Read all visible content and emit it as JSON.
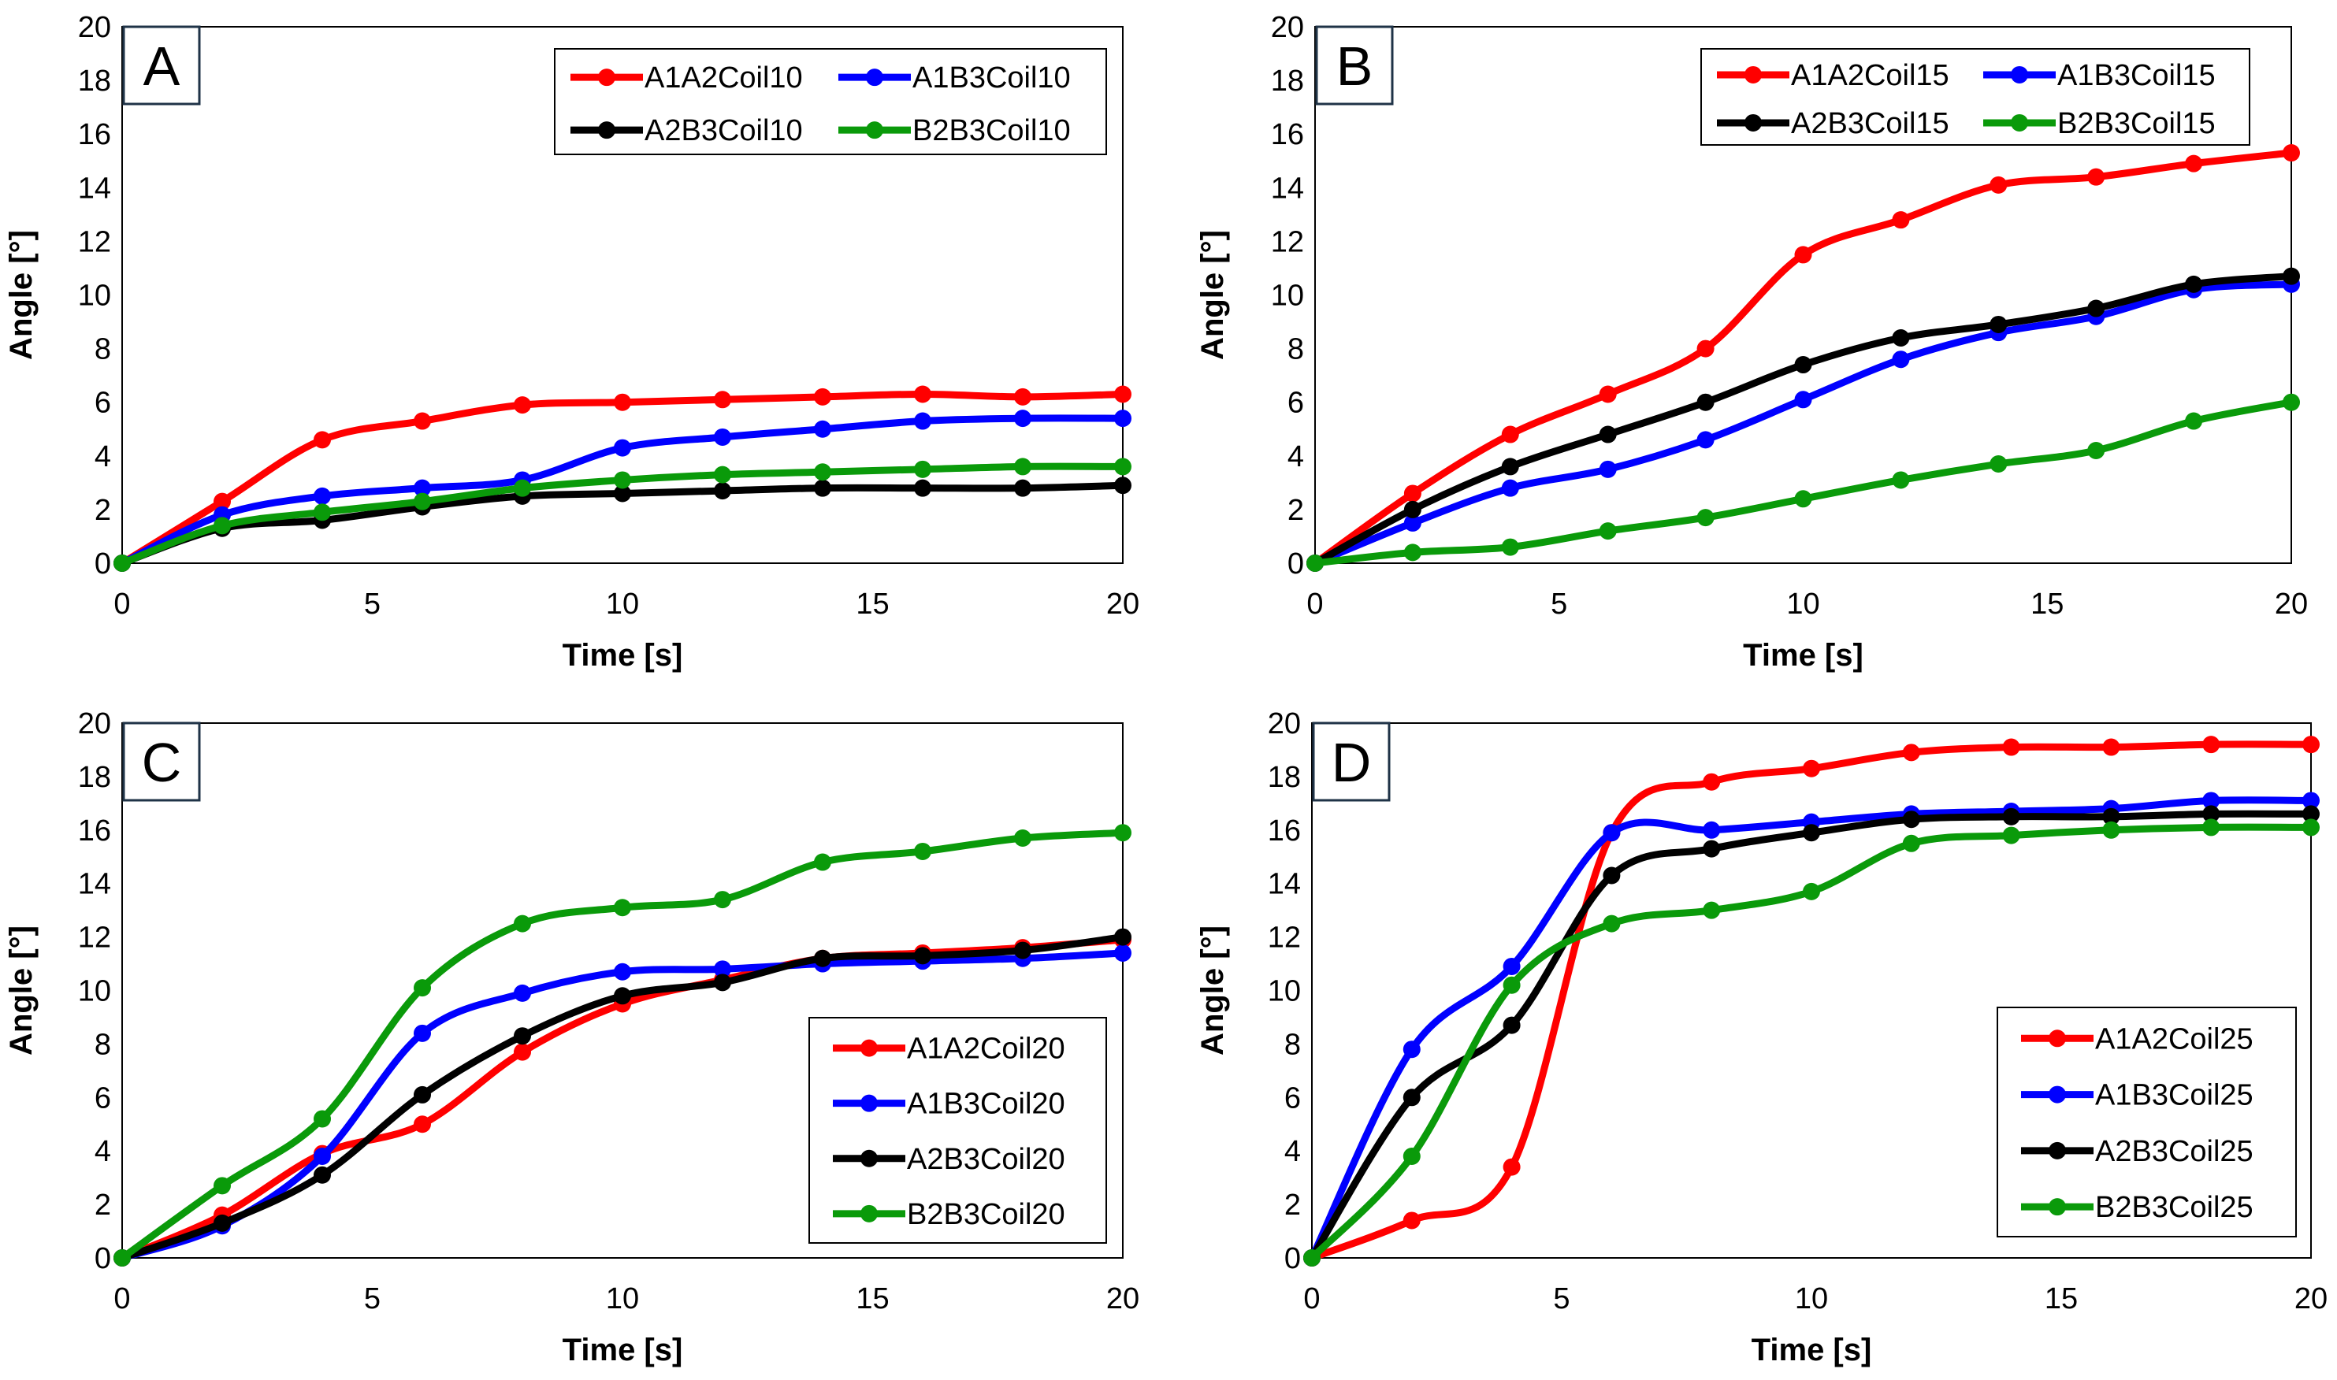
{
  "chart_data": [
    {
      "type": "line",
      "panel_label": "A",
      "xlabel": "Time [s]",
      "ylabel": "Angle [°]",
      "xlim": [
        0,
        20
      ],
      "ylim": [
        0,
        20
      ],
      "xticks": [
        "0",
        "5",
        "10",
        "15",
        "20"
      ],
      "yticks": [
        "0",
        "2",
        "4",
        "6",
        "8",
        "10",
        "12",
        "14",
        "16",
        "18",
        "20"
      ],
      "legend_placement": "top-right",
      "legend_columns": 2,
      "x": [
        0,
        2,
        4,
        6,
        8,
        10,
        12,
        14,
        16,
        18,
        20
      ],
      "series": [
        {
          "name": "A1A2Coil10",
          "color": "#ff0000",
          "values": [
            0,
            2.3,
            4.6,
            5.3,
            5.9,
            6.0,
            6.1,
            6.2,
            6.3,
            6.2,
            6.3
          ]
        },
        {
          "name": "A1B3Coil10",
          "color": "#0000ff",
          "values": [
            0,
            1.8,
            2.5,
            2.8,
            3.1,
            4.3,
            4.7,
            5.0,
            5.3,
            5.4,
            5.4
          ]
        },
        {
          "name": "A2B3Coil10",
          "color": "#000000",
          "values": [
            0,
            1.3,
            1.6,
            2.1,
            2.5,
            2.6,
            2.7,
            2.8,
            2.8,
            2.8,
            2.9
          ]
        },
        {
          "name": "B2B3Coil10",
          "color": "#0a9a0a",
          "values": [
            0,
            1.4,
            1.9,
            2.3,
            2.8,
            3.1,
            3.3,
            3.4,
            3.5,
            3.6,
            3.6
          ]
        }
      ]
    },
    {
      "type": "line",
      "panel_label": "B",
      "xlabel": "Time [s]",
      "ylabel": "Angle [°]",
      "xlim": [
        0,
        20
      ],
      "ylim": [
        0,
        20
      ],
      "xticks": [
        "0",
        "5",
        "10",
        "15",
        "20"
      ],
      "yticks": [
        "0",
        "2",
        "4",
        "6",
        "8",
        "10",
        "12",
        "14",
        "16",
        "18",
        "20"
      ],
      "legend_placement": "top-right",
      "legend_columns": 2,
      "x": [
        0,
        2,
        4,
        6,
        8,
        10,
        12,
        14,
        16,
        18,
        20
      ],
      "series": [
        {
          "name": "A1A2Coil15",
          "color": "#ff0000",
          "values": [
            0,
            2.6,
            4.8,
            6.3,
            8.0,
            11.5,
            12.8,
            14.1,
            14.4,
            14.9,
            15.3
          ]
        },
        {
          "name": "A1B3Coil15",
          "color": "#0000ff",
          "values": [
            0,
            1.5,
            2.8,
            3.5,
            4.6,
            6.1,
            7.6,
            8.6,
            9.2,
            10.2,
            10.4
          ]
        },
        {
          "name": "A2B3Coil15",
          "color": "#000000",
          "values": [
            0,
            2.0,
            3.6,
            4.8,
            6.0,
            7.4,
            8.4,
            8.9,
            9.5,
            10.4,
            10.7
          ]
        },
        {
          "name": "B2B3Coil15",
          "color": "#0a9a0a",
          "values": [
            0,
            0.4,
            0.6,
            1.2,
            1.7,
            2.4,
            3.1,
            3.7,
            4.2,
            5.3,
            6.0
          ]
        }
      ]
    },
    {
      "type": "line",
      "panel_label": "C",
      "xlabel": "Time [s]",
      "ylabel": "Angle [°]",
      "xlim": [
        0,
        20
      ],
      "ylim": [
        0,
        20
      ],
      "xticks": [
        "0",
        "5",
        "10",
        "15",
        "20"
      ],
      "yticks": [
        "0",
        "2",
        "4",
        "6",
        "8",
        "10",
        "12",
        "14",
        "16",
        "18",
        "20"
      ],
      "legend_placement": "bottom-right",
      "legend_columns": 1,
      "x": [
        0,
        2,
        4,
        6,
        8,
        10,
        12,
        14,
        16,
        18,
        20
      ],
      "series": [
        {
          "name": "A1A2Coil20",
          "color": "#ff0000",
          "values": [
            0,
            1.6,
            3.9,
            5.0,
            7.7,
            9.5,
            10.4,
            11.2,
            11.4,
            11.6,
            11.9
          ]
        },
        {
          "name": "A1B3Coil20",
          "color": "#0000ff",
          "values": [
            0,
            1.2,
            3.8,
            8.4,
            9.9,
            10.7,
            10.8,
            11.0,
            11.1,
            11.2,
            11.4
          ]
        },
        {
          "name": "A2B3Coil20",
          "color": "#000000",
          "values": [
            0,
            1.3,
            3.1,
            6.1,
            8.3,
            9.8,
            10.3,
            11.2,
            11.3,
            11.5,
            12.0
          ]
        },
        {
          "name": "B2B3Coil20",
          "color": "#0a9a0a",
          "values": [
            0,
            2.7,
            5.2,
            10.1,
            12.5,
            13.1,
            13.4,
            14.8,
            15.2,
            15.7,
            15.9
          ]
        }
      ]
    },
    {
      "type": "line",
      "panel_label": "D",
      "xlabel": "Time [s]",
      "ylabel": "Angle [°]",
      "xlim": [
        0,
        20
      ],
      "ylim": [
        0,
        20
      ],
      "xticks": [
        "0",
        "5",
        "10",
        "15",
        "20"
      ],
      "yticks": [
        "0",
        "2",
        "4",
        "6",
        "8",
        "10",
        "12",
        "14",
        "16",
        "18",
        "20"
      ],
      "legend_placement": "bottom-right",
      "legend_columns": 1,
      "x": [
        0,
        2,
        4,
        6,
        8,
        10,
        12,
        14,
        16,
        18,
        20
      ],
      "series": [
        {
          "name": "A1A2Coil25",
          "color": "#ff0000",
          "values": [
            0,
            1.4,
            3.4,
            15.9,
            17.8,
            18.3,
            18.9,
            19.1,
            19.1,
            19.2,
            19.2
          ]
        },
        {
          "name": "A1B3Coil25",
          "color": "#0000ff",
          "values": [
            0,
            7.8,
            10.9,
            15.9,
            16.0,
            16.3,
            16.6,
            16.7,
            16.8,
            17.1,
            17.1
          ]
        },
        {
          "name": "A2B3Coil25",
          "color": "#000000",
          "values": [
            0,
            6.0,
            8.7,
            14.3,
            15.3,
            15.9,
            16.4,
            16.5,
            16.5,
            16.6,
            16.6
          ]
        },
        {
          "name": "B2B3Coil25",
          "color": "#0a9a0a",
          "values": [
            0,
            3.8,
            10.2,
            12.5,
            13.0,
            13.7,
            15.5,
            15.8,
            16.0,
            16.1,
            16.1
          ]
        }
      ]
    }
  ]
}
